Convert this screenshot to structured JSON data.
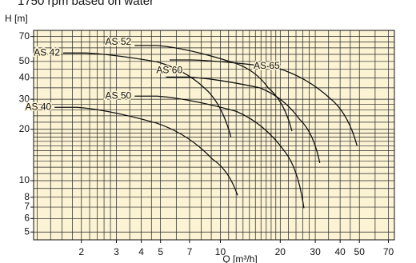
{
  "chart_data": {
    "type": "line",
    "title": "1750 rpm based on water",
    "x_label": "Q [m³/h]",
    "y_label": "H [m]",
    "xscale": "log",
    "yscale": "log",
    "grid": true,
    "xlim": [
      1.15,
      75
    ],
    "ylim": [
      4.5,
      76
    ],
    "xticks": [
      2,
      3,
      4,
      5,
      7,
      10,
      20,
      30,
      40,
      50,
      70
    ],
    "yticks": [
      5,
      6,
      7,
      8,
      10,
      20,
      30,
      40,
      50,
      70
    ],
    "xgrid": [
      1.2,
      1.4,
      1.6,
      1.8,
      2,
      2.2,
      2.4,
      2.6,
      2.8,
      3,
      3.5,
      4,
      4.5,
      5,
      6,
      7,
      8,
      9,
      10,
      11,
      12,
      13,
      14,
      15,
      16,
      17,
      18,
      19,
      20,
      22,
      24,
      26,
      28,
      30,
      35,
      40,
      45,
      50,
      60,
      70
    ],
    "ygrid": [
      5,
      6,
      7,
      8,
      9,
      10,
      11,
      12,
      13,
      14,
      15,
      16,
      17,
      18,
      19,
      20,
      22,
      24,
      26,
      28,
      30,
      35,
      40,
      45,
      50,
      55,
      60,
      65,
      70
    ],
    "series": [
      {
        "name": "AS 52",
        "color": "#111111",
        "x": [
          4.8,
          12,
          17.4,
          22.9
        ],
        "values": [
          62,
          48.6,
          35,
          19.5
        ]
      },
      {
        "name": "AS 42",
        "color": "#111111",
        "x": [
          2.1,
          4.8,
          8.3,
          11.3
        ],
        "values": [
          56,
          49.7,
          35,
          18
        ]
      },
      {
        "name": "AS 65",
        "color": "#111111",
        "x": [
          7.2,
          19,
          36,
          48.7
        ],
        "values": [
          51,
          46,
          30,
          16
        ]
      },
      {
        "name": "AS 60",
        "color": "#111111",
        "x": [
          6.9,
          15.8,
          25,
          31.6
        ],
        "values": [
          40.5,
          35,
          22.9,
          12.7
        ]
      },
      {
        "name": "AS 50",
        "color": "#111111",
        "x": [
          4.8,
          12,
          21,
          26.3
        ],
        "values": [
          31.3,
          25.5,
          14.9,
          6.9
        ]
      },
      {
        "name": "AS 40",
        "color": "#111111",
        "x": [
          1.9,
          4.8,
          9.1,
          12.2
        ],
        "values": [
          26.9,
          21.7,
          13.4,
          8.2
        ]
      }
    ]
  }
}
